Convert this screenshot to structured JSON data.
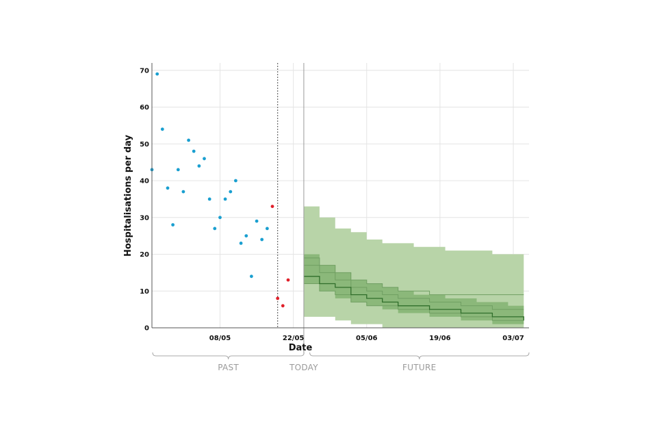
{
  "chart_data": {
    "type": "scatter",
    "title": "",
    "xlabel": "Date",
    "ylabel": "Hospitalisations per day",
    "ylim": [
      0,
      72
    ],
    "x_unit": "date",
    "x_range": [
      "2021-04-25",
      "2021-07-06"
    ],
    "today": "2021-05-24",
    "cutoff": "2021-05-19",
    "y_ticks": [
      0,
      10,
      20,
      30,
      40,
      50,
      60,
      70
    ],
    "x_ticks": [
      {
        "date": "2021-05-08",
        "label": "08/05"
      },
      {
        "date": "2021-05-22",
        "label": "22/05"
      },
      {
        "date": "2021-06-05",
        "label": "05/06"
      },
      {
        "date": "2021-06-19",
        "label": "19/06"
      },
      {
        "date": "2021-07-03",
        "label": "03/07"
      }
    ],
    "grid": true,
    "sections": [
      {
        "label": "PAST",
        "from": "2021-04-25",
        "to": "2021-05-23"
      },
      {
        "label": "TODAY",
        "at": "2021-05-24"
      },
      {
        "label": "FUTURE",
        "from": "2021-05-25",
        "to": "2021-07-06"
      }
    ],
    "colors": {
      "observed": "#1a9fd0",
      "recent": "#e0202a",
      "band_outer": "#b8d4a8",
      "band_inner": "#8bb87a",
      "median": "#2f6e2a",
      "quartile": "#6f9e62"
    },
    "series": [
      {
        "kind": "observed",
        "points": [
          [
            "2021-04-25",
            43
          ],
          [
            "2021-04-26",
            69
          ],
          [
            "2021-04-27",
            54
          ],
          [
            "2021-04-28",
            38
          ],
          [
            "2021-04-29",
            28
          ],
          [
            "2021-04-30",
            43
          ],
          [
            "2021-05-01",
            37
          ],
          [
            "2021-05-02",
            51
          ],
          [
            "2021-05-03",
            48
          ],
          [
            "2021-05-04",
            44
          ],
          [
            "2021-05-05",
            46
          ],
          [
            "2021-05-06",
            35
          ],
          [
            "2021-05-07",
            27
          ],
          [
            "2021-05-08",
            30
          ],
          [
            "2021-05-09",
            35
          ],
          [
            "2021-05-10",
            37
          ],
          [
            "2021-05-11",
            40
          ],
          [
            "2021-05-12",
            23
          ],
          [
            "2021-05-13",
            25
          ],
          [
            "2021-05-14",
            14
          ],
          [
            "2021-05-15",
            29
          ],
          [
            "2021-05-16",
            24
          ],
          [
            "2021-05-17",
            27
          ]
        ]
      },
      {
        "kind": "recent",
        "points": [
          [
            "2021-05-18",
            33
          ],
          [
            "2021-05-19",
            8
          ],
          [
            "2021-05-20",
            6
          ],
          [
            "2021-05-21",
            13
          ]
        ]
      }
    ],
    "forecast": {
      "dates": [
        "2021-05-24",
        "2021-05-27",
        "2021-05-30",
        "2021-06-02",
        "2021-06-05",
        "2021-06-08",
        "2021-06-11",
        "2021-06-14",
        "2021-06-17",
        "2021-06-20",
        "2021-06-23",
        "2021-06-26",
        "2021-06-29",
        "2021-07-02",
        "2021-07-05"
      ],
      "outer_upper": [
        33,
        30,
        27,
        26,
        24,
        23,
        23,
        22,
        22,
        21,
        21,
        21,
        20,
        20,
        18
      ],
      "outer_lower": [
        3,
        3,
        2,
        1,
        1,
        0,
        0,
        0,
        0,
        0,
        0,
        0,
        0,
        0,
        0
      ],
      "inner_upper": [
        20,
        17,
        15,
        13,
        12,
        11,
        10,
        9,
        9,
        8,
        8,
        7,
        7,
        6,
        6
      ],
      "inner_lower": [
        12,
        10,
        8,
        7,
        6,
        5,
        4,
        4,
        3,
        3,
        2,
        2,
        1,
        1,
        1
      ],
      "upper_quartile": [
        17,
        15,
        13,
        11,
        10,
        9,
        8,
        8,
        7,
        7,
        6,
        6,
        5,
        5,
        5
      ],
      "median": [
        14,
        12,
        11,
        9,
        8,
        7,
        6,
        6,
        5,
        5,
        4,
        4,
        3,
        3,
        2
      ],
      "lower_quartile": [
        12,
        10,
        9,
        7,
        6,
        6,
        5,
        5,
        4,
        4,
        3,
        3,
        2,
        2,
        2
      ],
      "outer_upper_line": [
        19,
        17,
        15,
        13,
        12,
        11,
        10,
        10,
        9,
        9,
        9,
        9,
        9,
        9,
        9
      ]
    }
  }
}
